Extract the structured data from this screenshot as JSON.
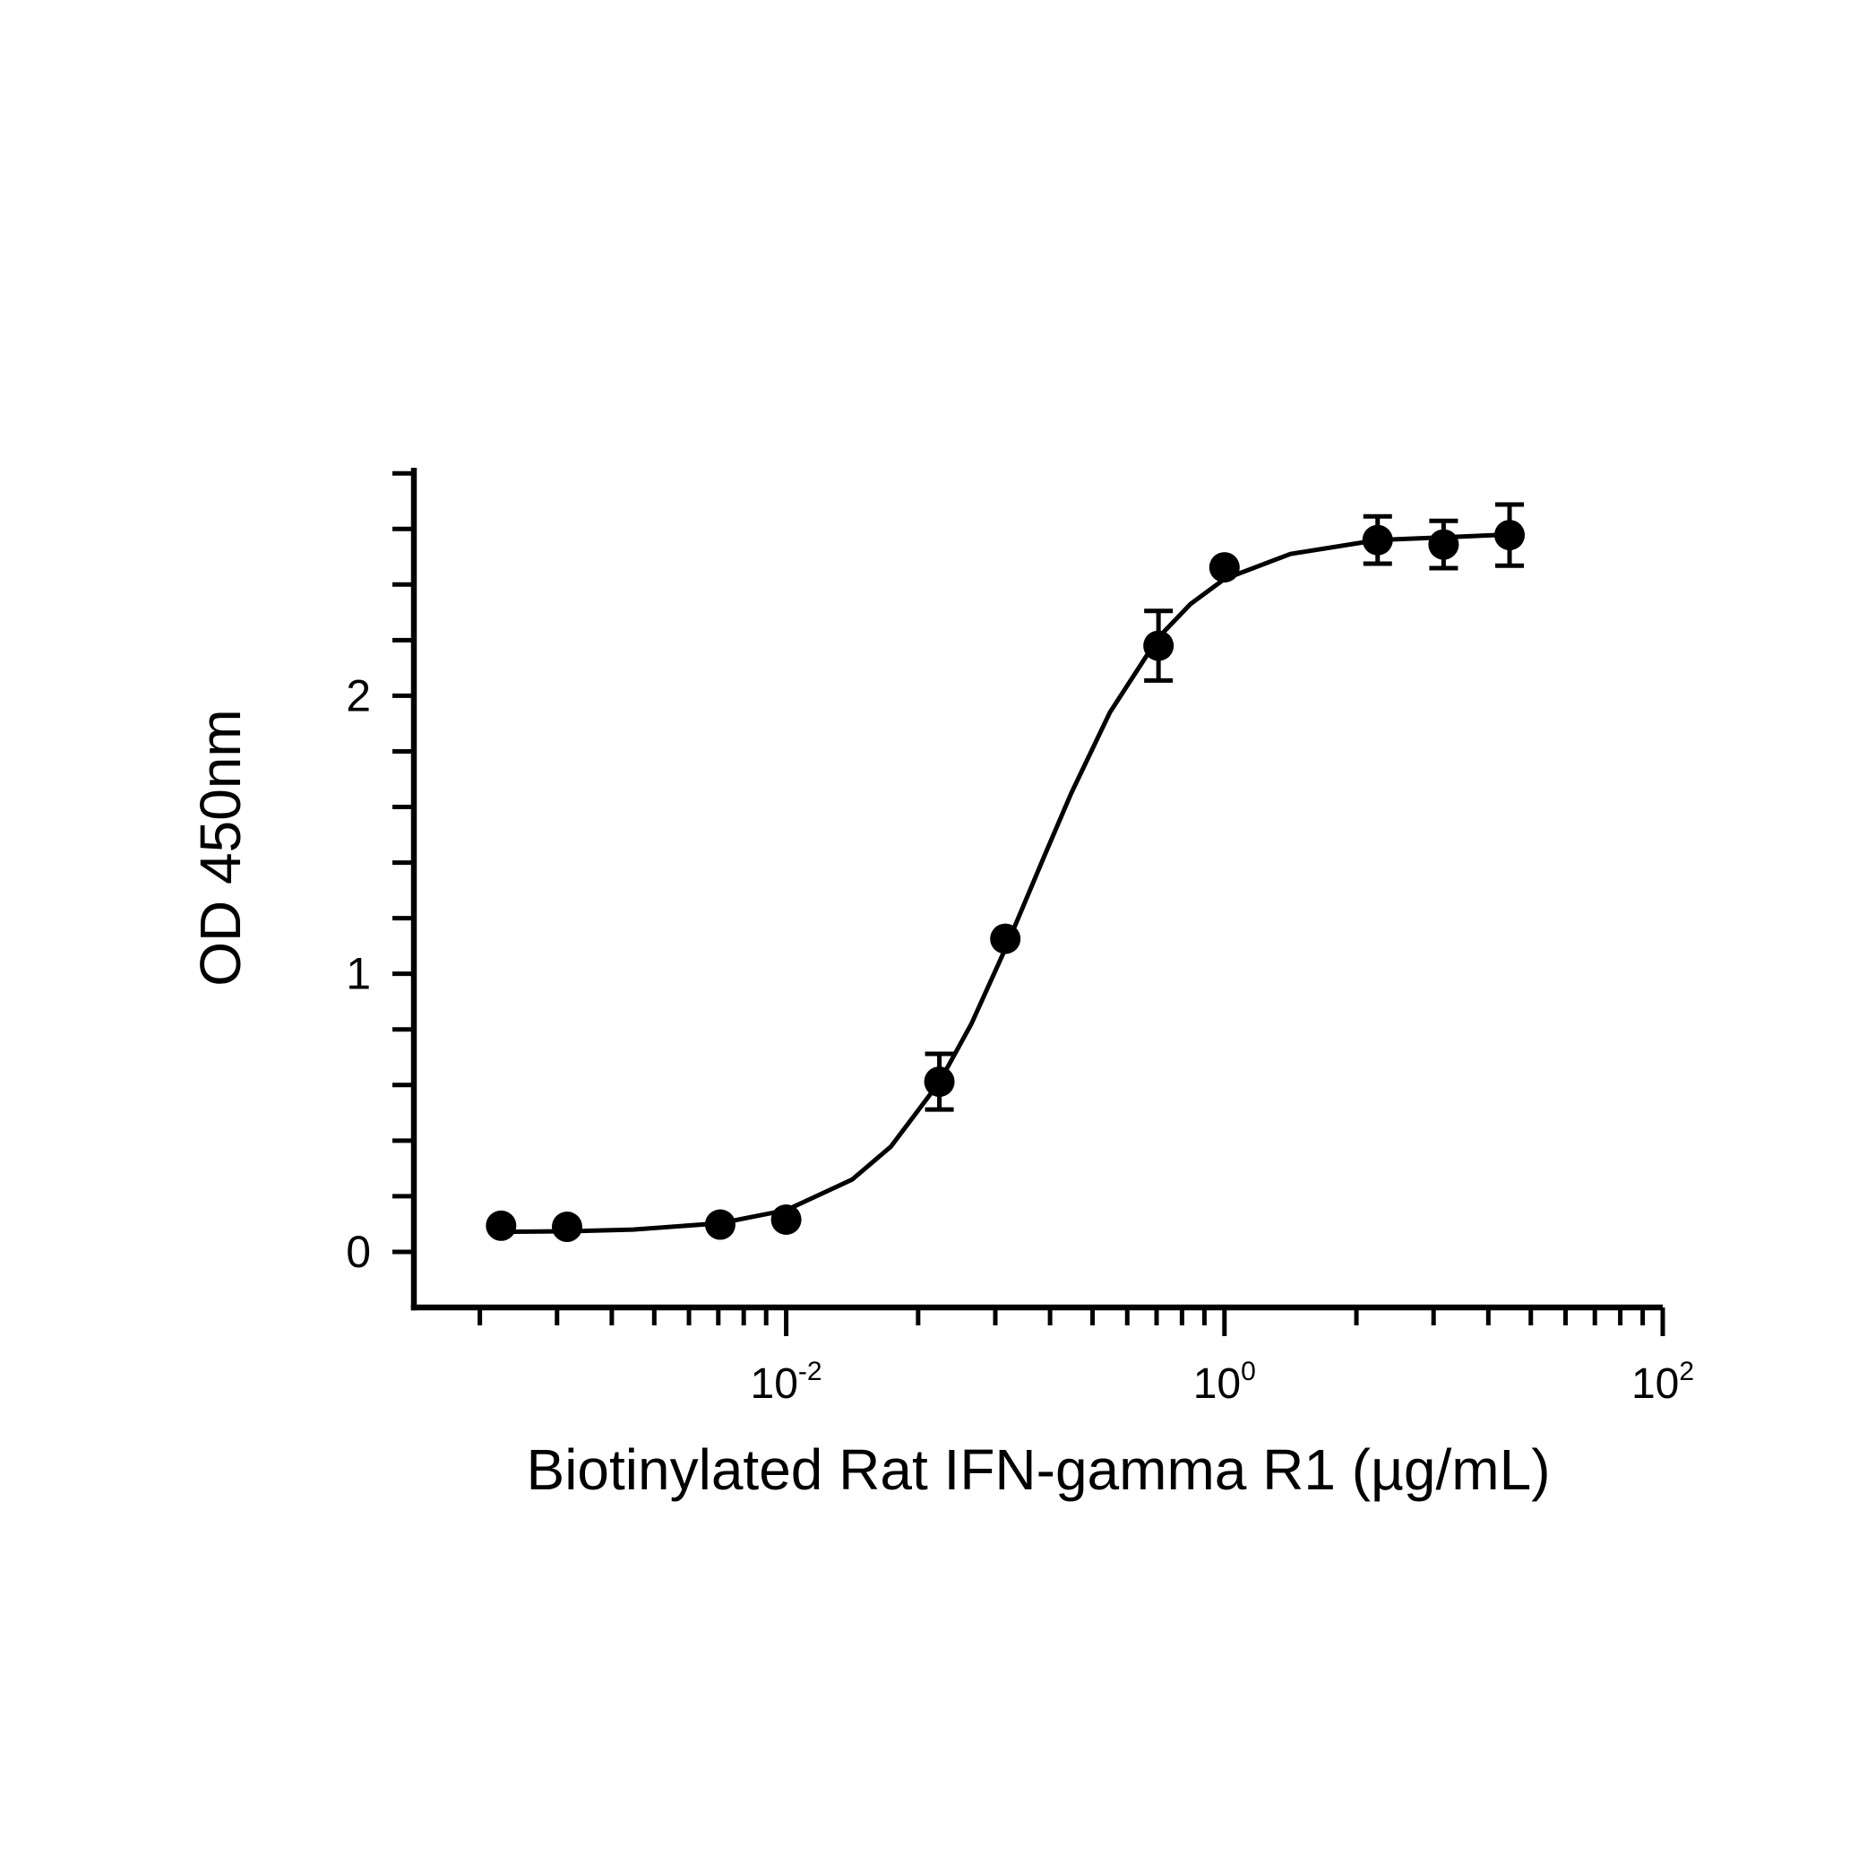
{
  "chart_data": {
    "type": "scatter",
    "xlabel": "Biotinylated Rat IFN-gamma R1 (µg/mL)",
    "ylabel": "OD 450nm",
    "xscale": "log",
    "xlim": [
      0.0002,
      100
    ],
    "ylim": [
      -0.2,
      2.82
    ],
    "xticks": [
      {
        "value": 0.01,
        "label": "10",
        "exponent": "-2"
      },
      {
        "value": 1,
        "label": "10",
        "exponent": "0"
      },
      {
        "value": 100,
        "label": "10",
        "exponent": "2"
      }
    ],
    "xminor_ticks": [
      0.0004,
      0.0009,
      0.0016,
      0.0025,
      0.0036,
      0.0049,
      0.0064,
      0.0081,
      0.04,
      0.09,
      0.16,
      0.25,
      0.36,
      0.49,
      0.64,
      0.81,
      4,
      9,
      16,
      25,
      36,
      49,
      64,
      81
    ],
    "yticks": [
      0,
      1,
      2
    ],
    "yminor_ticks": [
      0.2,
      0.4,
      0.6,
      0.8,
      1.2,
      1.4,
      1.6,
      1.8,
      2.2,
      2.4,
      2.6,
      2.8
    ],
    "color": "#000000",
    "x": [
      0.0005,
      0.001,
      0.005,
      0.01,
      0.05,
      0.1,
      0.5,
      1,
      5,
      10,
      20
    ],
    "values": [
      0.094,
      0.09,
      0.098,
      0.116,
      0.612,
      1.126,
      2.18,
      2.462,
      2.56,
      2.544,
      2.578
    ],
    "errors": [
      null,
      null,
      null,
      null,
      0.1,
      null,
      0.125,
      null,
      0.085,
      0.085,
      0.11
    ],
    "fit_curve": {
      "x": [
        0.0005,
        0.001,
        0.002,
        0.005,
        0.01,
        0.02,
        0.03,
        0.05,
        0.07,
        0.1,
        0.15,
        0.2,
        0.3,
        0.5,
        0.7,
        1,
        2,
        5,
        10,
        20
      ],
      "values": [
        0.072,
        0.074,
        0.08,
        0.103,
        0.15,
        0.26,
        0.378,
        0.61,
        0.82,
        1.09,
        1.42,
        1.65,
        1.94,
        2.21,
        2.33,
        2.42,
        2.51,
        2.56,
        2.57,
        2.58
      ]
    }
  }
}
